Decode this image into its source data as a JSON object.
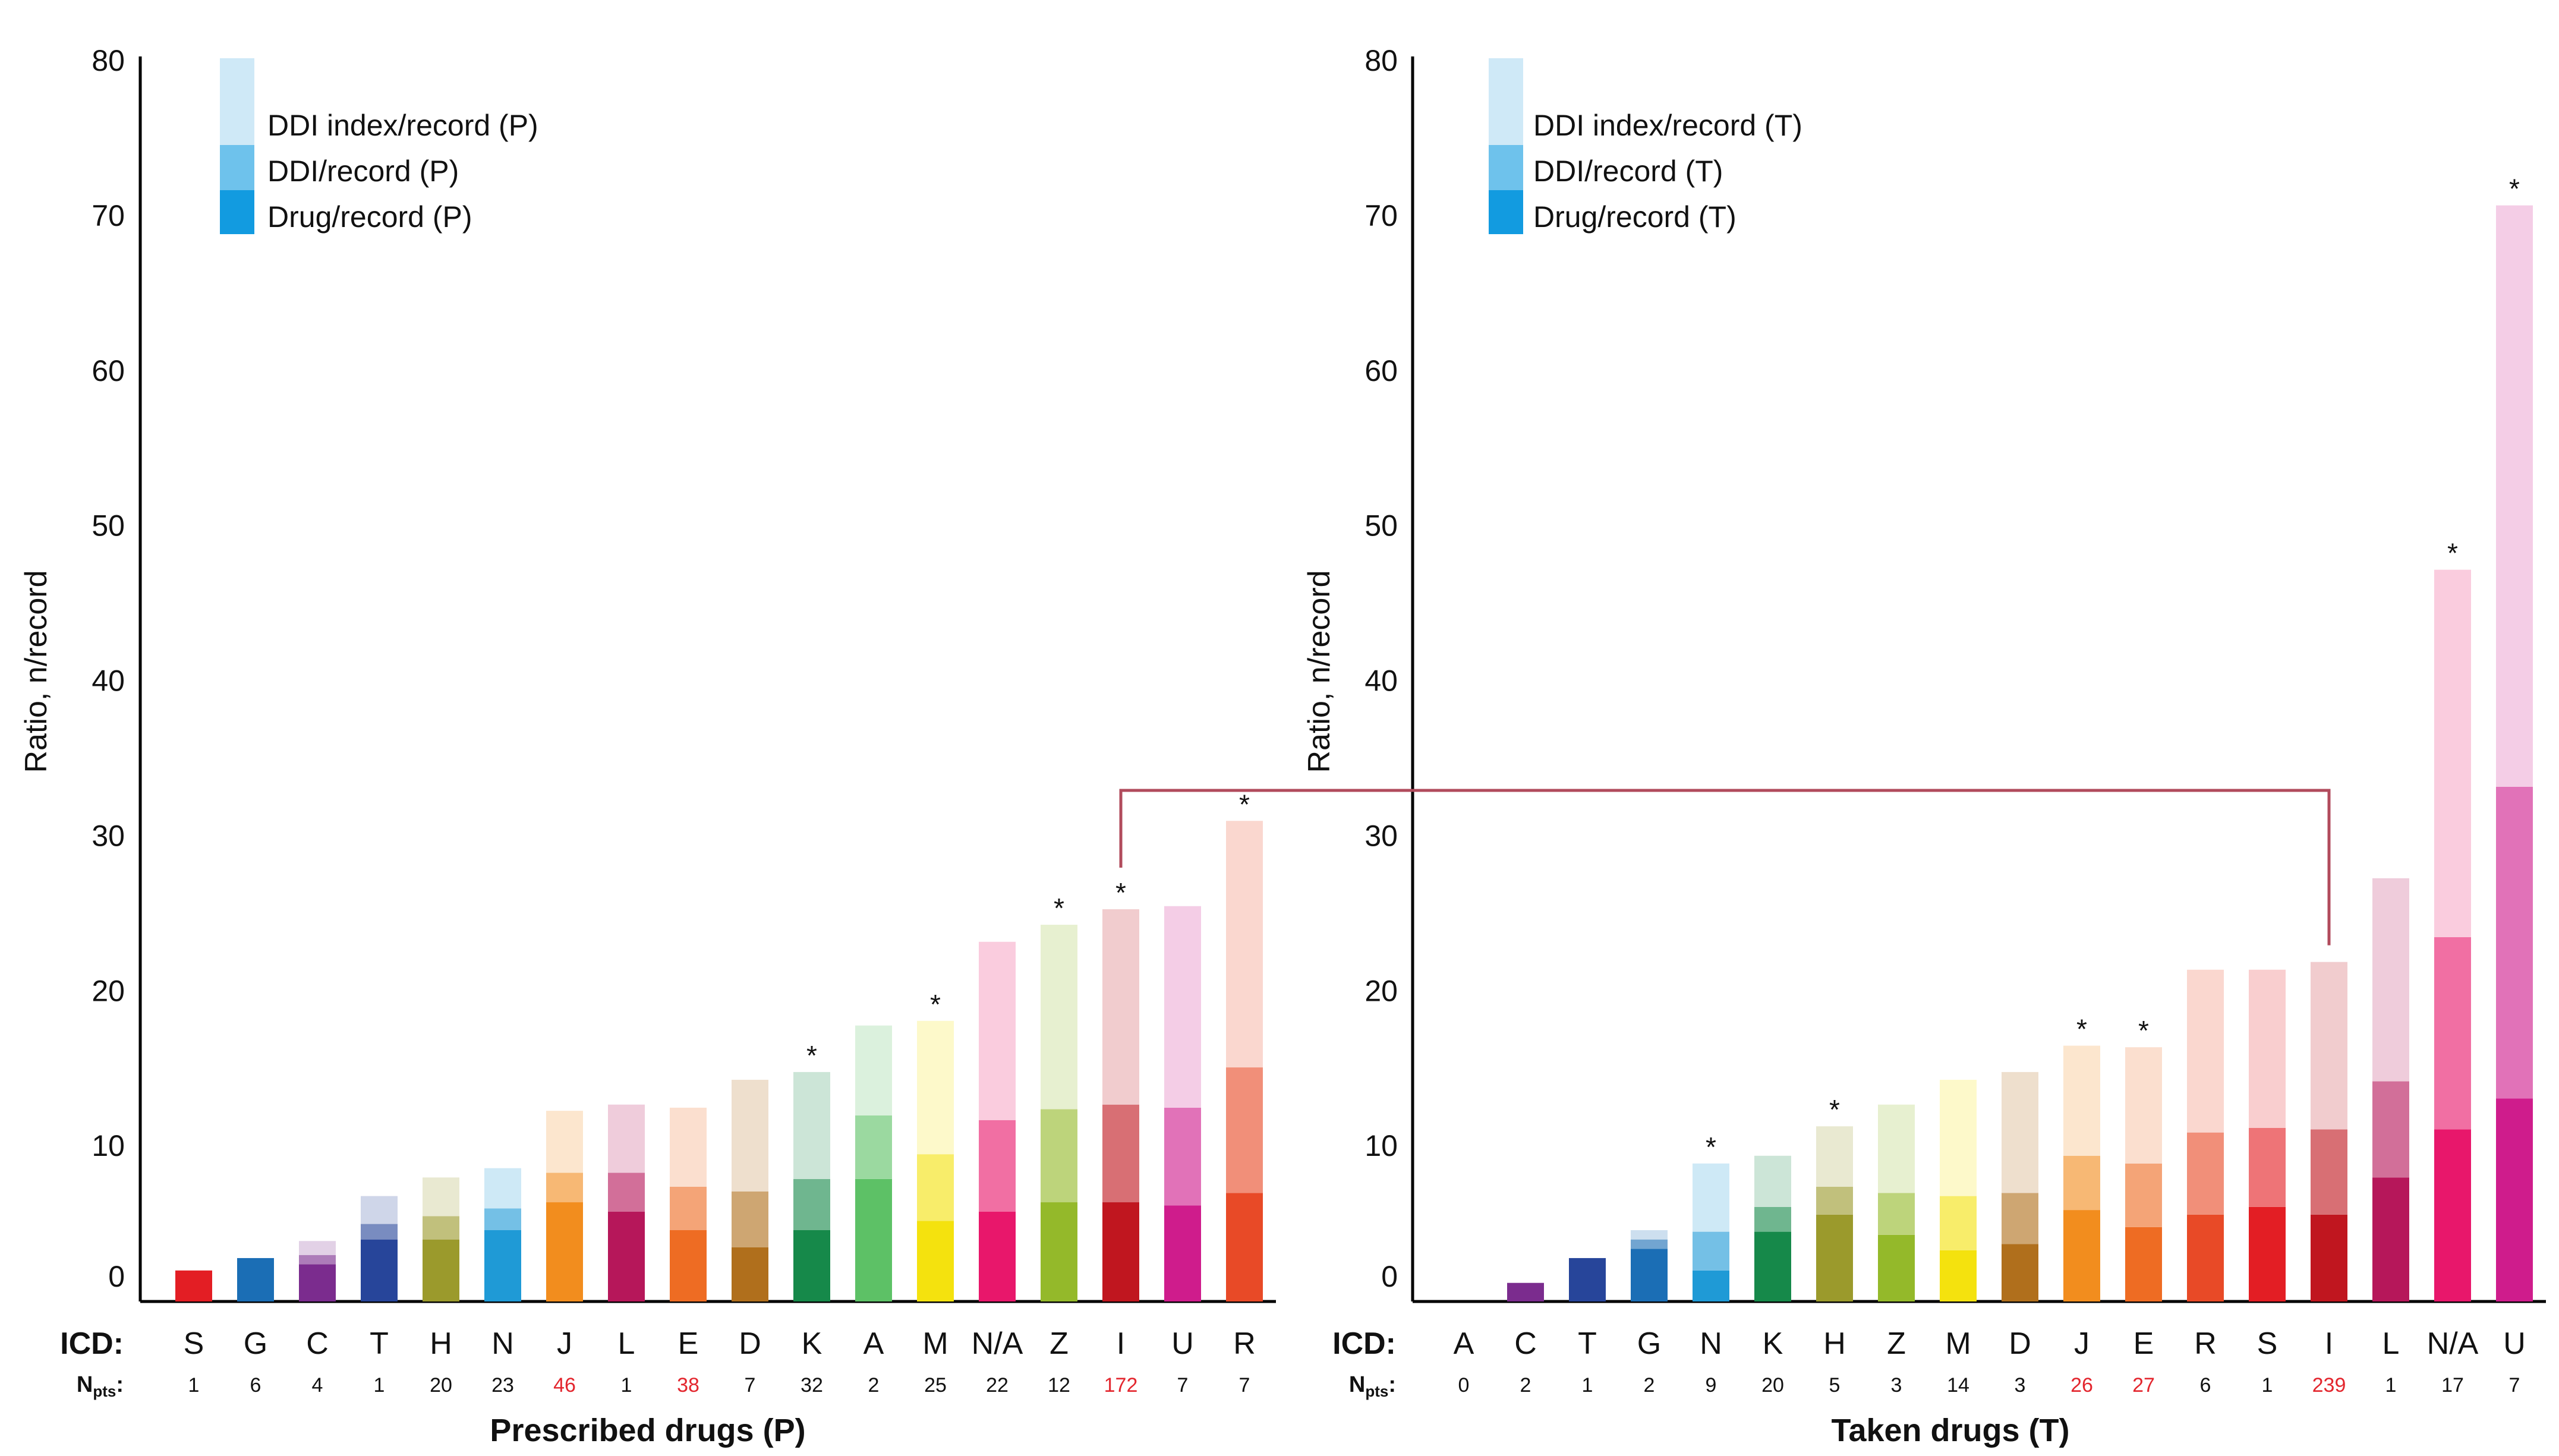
{
  "chart_data": [
    {
      "type": "bar",
      "stacked": true,
      "title": "",
      "xlabel": "Prescribed drugs (P)",
      "ylabel": "Ratio, n/record",
      "ylim": [
        0,
        80
      ],
      "yticks": [
        0,
        10,
        20,
        30,
        40,
        50,
        60,
        70,
        80
      ],
      "grid": false,
      "legend_position": "top-left",
      "legend": [
        "DDI index/record (P)",
        "DDI/record (P)",
        "Drug/record (P)"
      ],
      "row_labels": {
        "icd": "ICD:",
        "npts": "N",
        "npts_sub": "pts",
        "npts_colon": ":"
      },
      "categories": [
        "S",
        "G",
        "C",
        "T",
        "H",
        "N",
        "J",
        "L",
        "E",
        "D",
        "K",
        "A",
        "M",
        "N/A",
        "Z",
        "I",
        "U",
        "R"
      ],
      "npts": [
        "1",
        "6",
        "4",
        "1",
        "20",
        "23",
        "46",
        "1",
        "38",
        "7",
        "32",
        "2",
        "25",
        "22",
        "12",
        "172",
        "7",
        "7"
      ],
      "npts_highlight": [
        false,
        false,
        false,
        false,
        false,
        false,
        true,
        false,
        true,
        false,
        false,
        false,
        false,
        false,
        false,
        true,
        false,
        false
      ],
      "significant": [
        false,
        false,
        false,
        false,
        false,
        false,
        false,
        false,
        false,
        false,
        true,
        false,
        true,
        false,
        true,
        true,
        false,
        true
      ],
      "colors": [
        "#e31e24",
        "#1b6eb5",
        "#7b2c8e",
        "#27459a",
        "#9b9a2c",
        "#1f9ad6",
        "#f28d1e",
        "#b6175a",
        "#ee6c23",
        "#b06f1c",
        "#16894a",
        "#5dc166",
        "#f4e20e",
        "#e8176b",
        "#94b92a",
        "#c0161f",
        "#cf1c8c",
        "#e84a27"
      ],
      "series": [
        {
          "name": "Drug/record (P)",
          "values": [
            2.0,
            2.8,
            2.4,
            4.0,
            4.0,
            4.6,
            6.4,
            5.8,
            4.6,
            3.5,
            4.6,
            7.9,
            5.2,
            5.8,
            6.4,
            6.4,
            6.2,
            7.0
          ]
        },
        {
          "name": "DDI/record (P)",
          "values": [
            0,
            0,
            0.6,
            1.0,
            1.5,
            1.4,
            1.9,
            2.5,
            2.8,
            3.6,
            3.3,
            4.1,
            4.3,
            5.9,
            6.0,
            6.3,
            6.3,
            8.1
          ]
        },
        {
          "name": "DDI index/record (P)",
          "values": [
            0,
            0,
            0.9,
            1.8,
            2.5,
            2.6,
            4.0,
            4.4,
            5.1,
            7.2,
            6.9,
            5.8,
            8.6,
            11.5,
            11.9,
            12.6,
            13.0,
            15.9
          ]
        }
      ]
    },
    {
      "type": "bar",
      "stacked": true,
      "title": "",
      "xlabel": "Taken drugs (T)",
      "ylabel": "Ratio, n/record",
      "ylim": [
        0,
        80
      ],
      "yticks": [
        0,
        10,
        20,
        30,
        40,
        50,
        60,
        70,
        80
      ],
      "grid": false,
      "legend_position": "top-left",
      "legend": [
        "DDI index/record (T)",
        "DDI/record (T)",
        "Drug/record (T)"
      ],
      "row_labels": {
        "icd": "ICD:",
        "npts": "N",
        "npts_sub": "pts",
        "npts_colon": ":"
      },
      "categories": [
        "A",
        "C",
        "T",
        "G",
        "N",
        "K",
        "H",
        "Z",
        "M",
        "D",
        "J",
        "E",
        "R",
        "S",
        "I",
        "L",
        "N/A",
        "U"
      ],
      "npts": [
        "0",
        "2",
        "1",
        "2",
        "9",
        "20",
        "5",
        "3",
        "14",
        "3",
        "26",
        "27",
        "6",
        "1",
        "239",
        "1",
        "17",
        "7"
      ],
      "npts_highlight": [
        false,
        false,
        false,
        false,
        false,
        false,
        false,
        false,
        false,
        false,
        true,
        true,
        false,
        false,
        true,
        false,
        false,
        false
      ],
      "significant": [
        false,
        false,
        false,
        false,
        true,
        false,
        true,
        false,
        false,
        false,
        true,
        true,
        false,
        false,
        false,
        false,
        true,
        true
      ],
      "colors": [
        "#5dc166",
        "#7b2c8e",
        "#27459a",
        "#1b6eb5",
        "#1f9ad6",
        "#16894a",
        "#9b9a2c",
        "#94b92a",
        "#f4e20e",
        "#b06f1c",
        "#f28d1e",
        "#ee6c23",
        "#e84a27",
        "#e31e24",
        "#c0161f",
        "#b6175a",
        "#e8176b",
        "#cf1c8c"
      ],
      "series": [
        {
          "name": "Drug/record (T)",
          "values": [
            0,
            1.2,
            2.8,
            3.4,
            2.0,
            4.5,
            5.6,
            4.3,
            3.3,
            3.7,
            5.9,
            4.8,
            5.6,
            6.1,
            5.6,
            8.0,
            11.1,
            13.1
          ]
        },
        {
          "name": "DDI/record (T)",
          "values": [
            0,
            0,
            0,
            0.6,
            2.5,
            1.6,
            1.8,
            2.7,
            3.5,
            3.3,
            3.5,
            4.1,
            5.3,
            5.1,
            5.5,
            6.2,
            12.4,
            20.1
          ]
        },
        {
          "name": "DDI index/record (T)",
          "values": [
            0,
            0,
            0,
            0.6,
            4.4,
            3.3,
            3.9,
            5.7,
            7.5,
            7.8,
            7.1,
            7.5,
            10.5,
            10.2,
            10.8,
            13.1,
            23.7,
            37.5
          ]
        }
      ]
    }
  ],
  "comparison_link": {
    "from_chart": 0,
    "from_category": "I",
    "to_chart": 1,
    "to_category": "I",
    "color": "#b14b5c"
  },
  "significance_marker": "*"
}
